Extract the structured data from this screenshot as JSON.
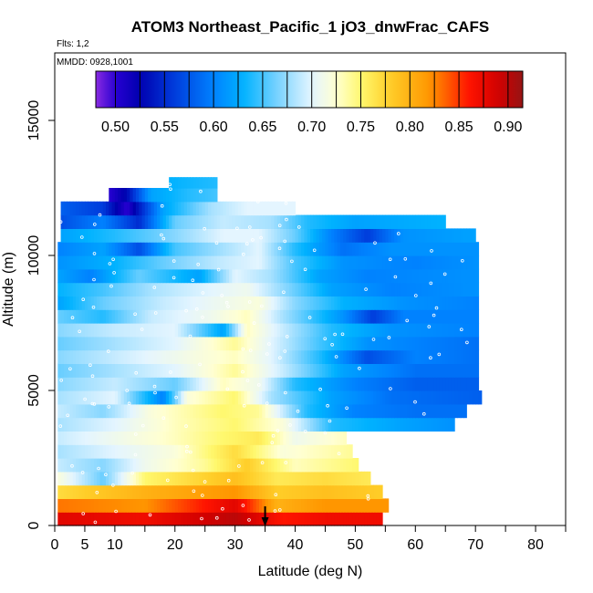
{
  "chart_data": {
    "type": "heatmap",
    "title": "ATOM3 Northeast_Pacific_1 jO3_dnwFrac_CAFS",
    "annotations": {
      "flights": "Flts: 1,2",
      "dates": "MMDD: 0928,1001"
    },
    "xlabel": "Latitude (deg N)",
    "ylabel": "Altitude (m)",
    "xlim": [
      0,
      85
    ],
    "ylim": [
      0,
      17500
    ],
    "x_ticks": [
      0,
      5,
      10,
      20,
      30,
      40,
      50,
      60,
      70,
      80
    ],
    "x_minor_ticks": [
      0,
      5,
      10,
      15,
      20,
      25,
      30,
      35,
      40,
      45,
      50,
      55,
      60,
      65,
      70,
      75,
      80,
      85
    ],
    "y_ticks": [
      0,
      5000,
      10000,
      15000
    ],
    "colorbar": {
      "range": [
        0.48,
        0.915
      ],
      "ticks": [
        "0.50",
        "0.55",
        "0.60",
        "0.65",
        "0.70",
        "0.75",
        "0.80",
        "0.85",
        "0.90"
      ],
      "tick_values": [
        0.5,
        0.55,
        0.6,
        0.65,
        0.7,
        0.75,
        0.8,
        0.85,
        0.9
      ]
    },
    "marker": {
      "type": "arrow",
      "latitude": 35
    },
    "altitude_levels": [
      {
        "alt_bottom": 0,
        "alt_top": 500,
        "lat_min": 0.5,
        "lat_max": 54.5,
        "bands": [
          [
            0.5,
            0.88
          ],
          [
            15,
            0.87
          ],
          [
            30,
            0.9
          ],
          [
            38,
            0.86
          ],
          [
            45,
            0.87
          ],
          [
            54.5,
            0.87
          ]
        ]
      },
      {
        "alt_bottom": 500,
        "alt_top": 1000,
        "lat_min": 0.5,
        "lat_max": 55.5,
        "bands": [
          [
            0.5,
            0.83
          ],
          [
            15,
            0.82
          ],
          [
            30,
            0.88
          ],
          [
            37,
            0.8
          ],
          [
            45,
            0.82
          ],
          [
            55.5,
            0.82
          ]
        ]
      },
      {
        "alt_bottom": 1000,
        "alt_top": 1500,
        "lat_min": 0.5,
        "lat_max": 54.5,
        "bands": [
          [
            0.5,
            0.77
          ],
          [
            15,
            0.8
          ],
          [
            30,
            0.82
          ],
          [
            37,
            0.78
          ],
          [
            45,
            0.79
          ],
          [
            54.5,
            0.78
          ]
        ]
      },
      {
        "alt_bottom": 1500,
        "alt_top": 2000,
        "lat_min": 0.5,
        "lat_max": 52.5,
        "bands": [
          [
            0.5,
            0.72
          ],
          [
            8,
            0.66
          ],
          [
            15,
            0.75
          ],
          [
            30,
            0.79
          ],
          [
            37,
            0.76
          ],
          [
            45,
            0.77
          ],
          [
            52.5,
            0.76
          ]
        ]
      },
      {
        "alt_bottom": 2000,
        "alt_top": 2500,
        "lat_min": 0.5,
        "lat_max": 50.5,
        "bands": [
          [
            0.5,
            0.69
          ],
          [
            8,
            0.67
          ],
          [
            15,
            0.71
          ],
          [
            25,
            0.74
          ],
          [
            32,
            0.78
          ],
          [
            40,
            0.73
          ],
          [
            50.5,
            0.75
          ]
        ]
      },
      {
        "alt_bottom": 2500,
        "alt_top": 3000,
        "lat_min": 0.5,
        "lat_max": 49.5,
        "bands": [
          [
            0.5,
            0.68
          ],
          [
            10,
            0.7
          ],
          [
            20,
            0.72
          ],
          [
            30,
            0.77
          ],
          [
            38,
            0.72
          ],
          [
            49.5,
            0.74
          ]
        ]
      },
      {
        "alt_bottom": 3000,
        "alt_top": 3500,
        "lat_min": 0.5,
        "lat_max": 48.5,
        "bands": [
          [
            0.5,
            0.69
          ],
          [
            10,
            0.71
          ],
          [
            20,
            0.73
          ],
          [
            28,
            0.75
          ],
          [
            34,
            0.76
          ],
          [
            40,
            0.71
          ],
          [
            48.5,
            0.73
          ]
        ]
      },
      {
        "alt_bottom": 3500,
        "alt_top": 4000,
        "lat_min": 0.5,
        "lat_max": 66.5,
        "bands": [
          [
            0.5,
            0.68
          ],
          [
            10,
            0.7
          ],
          [
            20,
            0.73
          ],
          [
            30,
            0.75
          ],
          [
            38,
            0.72
          ],
          [
            46,
            0.64
          ],
          [
            58,
            0.62
          ],
          [
            66.5,
            0.61
          ]
        ]
      },
      {
        "alt_bottom": 4000,
        "alt_top": 4500,
        "lat_min": 0.5,
        "lat_max": 68.5,
        "bands": [
          [
            0.5,
            0.69
          ],
          [
            8,
            0.67
          ],
          [
            16,
            0.72
          ],
          [
            28,
            0.75
          ],
          [
            34,
            0.74
          ],
          [
            42,
            0.64
          ],
          [
            50,
            0.6
          ],
          [
            60,
            0.59
          ],
          [
            68.5,
            0.59
          ]
        ]
      },
      {
        "alt_bottom": 4500,
        "alt_top": 5000,
        "lat_min": 0.5,
        "lat_max": 71,
        "bands": [
          [
            0.5,
            0.68
          ],
          [
            10,
            0.7
          ],
          [
            18,
            0.6
          ],
          [
            22,
            0.72
          ],
          [
            30,
            0.75
          ],
          [
            36,
            0.68
          ],
          [
            46,
            0.62
          ],
          [
            56,
            0.59
          ],
          [
            71,
            0.58
          ]
        ]
      },
      {
        "alt_bottom": 5000,
        "alt_top": 5500,
        "lat_min": 0.5,
        "lat_max": 70.5,
        "bands": [
          [
            0.5,
            0.67
          ],
          [
            10,
            0.69
          ],
          [
            20,
            0.66
          ],
          [
            28,
            0.73
          ],
          [
            34,
            0.71
          ],
          [
            40,
            0.64
          ],
          [
            50,
            0.6
          ],
          [
            60,
            0.58
          ],
          [
            70.5,
            0.58
          ]
        ]
      },
      {
        "alt_bottom": 5500,
        "alt_top": 6000,
        "lat_min": 0.5,
        "lat_max": 70.5,
        "bands": [
          [
            0.5,
            0.66
          ],
          [
            10,
            0.68
          ],
          [
            20,
            0.7
          ],
          [
            30,
            0.74
          ],
          [
            38,
            0.69
          ],
          [
            48,
            0.62
          ],
          [
            60,
            0.59
          ],
          [
            70.5,
            0.59
          ]
        ]
      },
      {
        "alt_bottom": 6000,
        "alt_top": 6500,
        "lat_min": 0.5,
        "lat_max": 70.5,
        "bands": [
          [
            0.5,
            0.67
          ],
          [
            10,
            0.69
          ],
          [
            20,
            0.71
          ],
          [
            30,
            0.73
          ],
          [
            36,
            0.7
          ],
          [
            44,
            0.64
          ],
          [
            52,
            0.57
          ],
          [
            60,
            0.6
          ],
          [
            70.5,
            0.59
          ]
        ]
      },
      {
        "alt_bottom": 6500,
        "alt_top": 7000,
        "lat_min": 0.5,
        "lat_max": 70.5,
        "bands": [
          [
            0.5,
            0.66
          ],
          [
            10,
            0.68
          ],
          [
            20,
            0.7
          ],
          [
            30,
            0.74
          ],
          [
            36,
            0.7
          ],
          [
            44,
            0.65
          ],
          [
            52,
            0.61
          ],
          [
            60,
            0.6
          ],
          [
            70.5,
            0.59
          ]
        ]
      },
      {
        "alt_bottom": 7000,
        "alt_top": 7500,
        "lat_min": 0.5,
        "lat_max": 70.5,
        "bands": [
          [
            0.5,
            0.67
          ],
          [
            10,
            0.69
          ],
          [
            20,
            0.7
          ],
          [
            28,
            0.62
          ],
          [
            32,
            0.73
          ],
          [
            38,
            0.69
          ],
          [
            46,
            0.64
          ],
          [
            56,
            0.61
          ],
          [
            70.5,
            0.6
          ]
        ]
      },
      {
        "alt_bottom": 7500,
        "alt_top": 8000,
        "lat_min": 0.5,
        "lat_max": 70.5,
        "bands": [
          [
            0.5,
            0.66
          ],
          [
            8,
            0.64
          ],
          [
            16,
            0.69
          ],
          [
            26,
            0.71
          ],
          [
            32,
            0.73
          ],
          [
            38,
            0.68
          ],
          [
            48,
            0.61
          ],
          [
            53,
            0.56
          ],
          [
            58,
            0.6
          ],
          [
            70.5,
            0.6
          ]
        ]
      },
      {
        "alt_bottom": 8000,
        "alt_top": 8500,
        "lat_min": 0.5,
        "lat_max": 70.5,
        "bands": [
          [
            0.5,
            0.62
          ],
          [
            8,
            0.66
          ],
          [
            18,
            0.69
          ],
          [
            28,
            0.71
          ],
          [
            34,
            0.72
          ],
          [
            40,
            0.67
          ],
          [
            48,
            0.63
          ],
          [
            58,
            0.61
          ],
          [
            70.5,
            0.6
          ]
        ]
      },
      {
        "alt_bottom": 8500,
        "alt_top": 9000,
        "lat_min": 0.5,
        "lat_max": 70.5,
        "bands": [
          [
            0.5,
            0.63
          ],
          [
            8,
            0.65
          ],
          [
            16,
            0.68
          ],
          [
            26,
            0.7
          ],
          [
            32,
            0.71
          ],
          [
            40,
            0.66
          ],
          [
            46,
            0.62
          ],
          [
            56,
            0.6
          ],
          [
            70.5,
            0.61
          ]
        ]
      },
      {
        "alt_bottom": 9000,
        "alt_top": 9500,
        "lat_min": 0.5,
        "lat_max": 70.5,
        "bands": [
          [
            0.5,
            0.62
          ],
          [
            6,
            0.6
          ],
          [
            14,
            0.66
          ],
          [
            24,
            0.62
          ],
          [
            30,
            0.7
          ],
          [
            36,
            0.68
          ],
          [
            44,
            0.62
          ],
          [
            52,
            0.6
          ],
          [
            70.5,
            0.61
          ]
        ]
      },
      {
        "alt_bottom": 9500,
        "alt_top": 10000,
        "lat_min": 0.5,
        "lat_max": 70.5,
        "bands": [
          [
            0.5,
            0.61
          ],
          [
            10,
            0.63
          ],
          [
            18,
            0.66
          ],
          [
            28,
            0.69
          ],
          [
            34,
            0.7
          ],
          [
            40,
            0.65
          ],
          [
            48,
            0.61
          ],
          [
            60,
            0.6
          ],
          [
            70.5,
            0.61
          ]
        ]
      },
      {
        "alt_bottom": 10000,
        "alt_top": 10500,
        "lat_min": 0.5,
        "lat_max": 70.5,
        "bands": [
          [
            0.5,
            0.6
          ],
          [
            8,
            0.62
          ],
          [
            14,
            0.57
          ],
          [
            20,
            0.65
          ],
          [
            28,
            0.68
          ],
          [
            34,
            0.7
          ],
          [
            40,
            0.64
          ],
          [
            48,
            0.59
          ],
          [
            56,
            0.61
          ],
          [
            70.5,
            0.61
          ]
        ]
      },
      {
        "alt_bottom": 10500,
        "alt_top": 11000,
        "lat_min": 1,
        "lat_max": 70,
        "bands": [
          [
            1,
            0.62
          ],
          [
            10,
            0.64
          ],
          [
            20,
            0.67
          ],
          [
            28,
            0.7
          ],
          [
            34,
            0.7
          ],
          [
            40,
            0.66
          ],
          [
            46,
            0.6
          ],
          [
            52,
            0.56
          ],
          [
            58,
            0.61
          ],
          [
            70,
            0.62
          ]
        ]
      },
      {
        "alt_bottom": 11000,
        "alt_top": 11500,
        "lat_min": 1,
        "lat_max": 65,
        "bands": [
          [
            1,
            0.57
          ],
          [
            8,
            0.6
          ],
          [
            14,
            0.55
          ],
          [
            20,
            0.66
          ],
          [
            28,
            0.69
          ],
          [
            36,
            0.68
          ],
          [
            42,
            0.64
          ],
          [
            50,
            0.62
          ],
          [
            65,
            0.63
          ]
        ]
      },
      {
        "alt_bottom": 11500,
        "alt_top": 12000,
        "lat_min": 1,
        "lat_max": 40,
        "bands": [
          [
            1,
            0.58
          ],
          [
            8,
            0.56
          ],
          [
            12,
            0.5
          ],
          [
            18,
            0.62
          ],
          [
            26,
            0.68
          ],
          [
            32,
            0.7
          ],
          [
            40,
            0.7
          ]
        ]
      },
      {
        "alt_bottom": 12000,
        "alt_top": 12500,
        "lat_min": 9,
        "lat_max": 27,
        "bands": [
          [
            9,
            0.5
          ],
          [
            12,
            0.53
          ],
          [
            16,
            0.62
          ],
          [
            22,
            0.64
          ],
          [
            27,
            0.65
          ]
        ]
      },
      {
        "alt_bottom": 12500,
        "alt_top": 12900,
        "lat_min": 19,
        "lat_max": 27,
        "bands": [
          [
            19,
            0.63
          ],
          [
            27,
            0.64
          ]
        ]
      }
    ]
  }
}
